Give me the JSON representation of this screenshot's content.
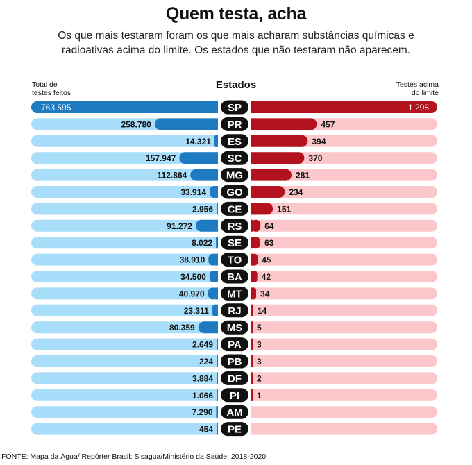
{
  "title": "Quem testa, acha",
  "subtitle": "Os que mais testaram foram os que mais acharam substâncias químicas e radioativas acima do limite. Os estados que não testaram não aparecem.",
  "source": "FONTE:  Mapa da Água/ Repórter Brasil; Sisagua/Ministério da Saúde; 2018-2020",
  "chart_data": {
    "type": "bar",
    "layout": "butterfly",
    "center_label": "Estados",
    "left_label_line1": "Total de",
    "left_label_line2": "testes feitos",
    "right_label_line1": "Testes acima",
    "right_label_line2": "do limite",
    "left_max": 763595,
    "right_max": 1298,
    "colors": {
      "left_track": "#a9defa",
      "left_bar": "#1f7bc1",
      "right_track": "#fcc7cb",
      "right_bar": "#b2131d",
      "pill": "#111111"
    },
    "rows": [
      {
        "state": "SP",
        "tests": 763595,
        "tests_label": "763.595",
        "above": 1298,
        "above_label": "1.298"
      },
      {
        "state": "PR",
        "tests": 258780,
        "tests_label": "258.780",
        "above": 457,
        "above_label": "457"
      },
      {
        "state": "ES",
        "tests": 14321,
        "tests_label": "14.321",
        "above": 394,
        "above_label": "394"
      },
      {
        "state": "SC",
        "tests": 157947,
        "tests_label": "157.947",
        "above": 370,
        "above_label": "370"
      },
      {
        "state": "MG",
        "tests": 112864,
        "tests_label": "112.864",
        "above": 281,
        "above_label": "281"
      },
      {
        "state": "GO",
        "tests": 33914,
        "tests_label": "33.914",
        "above": 234,
        "above_label": "234"
      },
      {
        "state": "CE",
        "tests": 2956,
        "tests_label": "2.956",
        "above": 151,
        "above_label": "151"
      },
      {
        "state": "RS",
        "tests": 91272,
        "tests_label": "91.272",
        "above": 64,
        "above_label": "64"
      },
      {
        "state": "SE",
        "tests": 8022,
        "tests_label": "8.022",
        "above": 63,
        "above_label": "63"
      },
      {
        "state": "TO",
        "tests": 38910,
        "tests_label": "38.910",
        "above": 45,
        "above_label": "45"
      },
      {
        "state": "BA",
        "tests": 34500,
        "tests_label": "34.500",
        "above": 42,
        "above_label": "42"
      },
      {
        "state": "MT",
        "tests": 40970,
        "tests_label": "40.970",
        "above": 34,
        "above_label": "34"
      },
      {
        "state": "RJ",
        "tests": 23311,
        "tests_label": "23.311",
        "above": 14,
        "above_label": "14"
      },
      {
        "state": "MS",
        "tests": 80359,
        "tests_label": "80.359",
        "above": 5,
        "above_label": "5"
      },
      {
        "state": "PA",
        "tests": 2649,
        "tests_label": "2.649",
        "above": 3,
        "above_label": "3"
      },
      {
        "state": "PB",
        "tests": 224,
        "tests_label": "224",
        "above": 3,
        "above_label": "3"
      },
      {
        "state": "DF",
        "tests": 3884,
        "tests_label": "3.884",
        "above": 2,
        "above_label": "2"
      },
      {
        "state": "PI",
        "tests": 1066,
        "tests_label": "1.066",
        "above": 1,
        "above_label": "1"
      },
      {
        "state": "AM",
        "tests": 7290,
        "tests_label": "7.290",
        "above": 0,
        "above_label": ""
      },
      {
        "state": "PE",
        "tests": 454,
        "tests_label": "454",
        "above": 0,
        "above_label": ""
      }
    ]
  }
}
